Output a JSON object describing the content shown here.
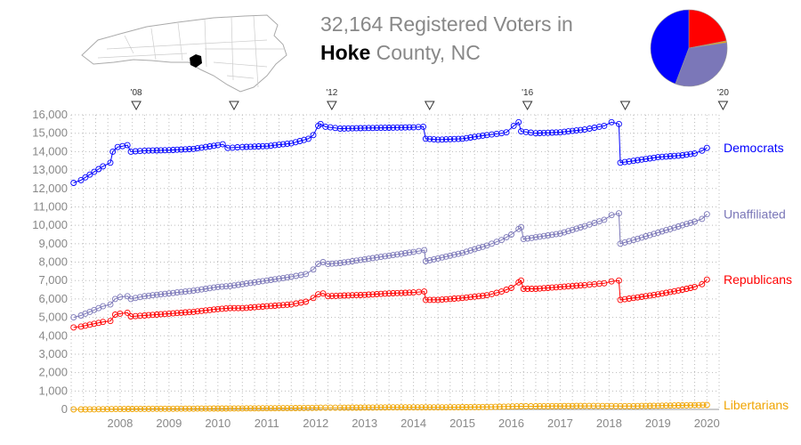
{
  "header": {
    "title_line1": "32,164 Registered Voters in",
    "county": "Hoke",
    "title_suffix": " County, NC"
  },
  "map": {
    "state": "NC",
    "highlight": "Hoke"
  },
  "pie": {
    "colors": {
      "democrats": "#0000ff",
      "unaffiliated": "#7b77b8",
      "republicans": "#ff0000",
      "libertarians": "#f0a400"
    }
  },
  "chart_data": {
    "type": "line",
    "title": "32,164 Registered Voters in Hoke County, NC",
    "xlabel": "",
    "ylabel": "",
    "ylim": [
      0,
      16000
    ],
    "xlim": [
      2007.5,
      2020.75
    ],
    "y_ticks": [
      "0",
      "1,000",
      "2,000",
      "3,000",
      "4,000",
      "5,000",
      "6,000",
      "7,000",
      "8,000",
      "9,000",
      "10,000",
      "11,000",
      "12,000",
      "13,000",
      "14,000",
      "15,000",
      "16,000"
    ],
    "x_ticks": [
      "2008",
      "2009",
      "2010",
      "2011",
      "2012",
      "2013",
      "2014",
      "2015",
      "2016",
      "2017",
      "2018",
      "2019",
      "2020"
    ],
    "election_markers": [
      {
        "x": 2008.83,
        "label": "'08"
      },
      {
        "x": 2010.83,
        "label": ""
      },
      {
        "x": 2012.83,
        "label": "'12"
      },
      {
        "x": 2014.83,
        "label": ""
      },
      {
        "x": 2016.83,
        "label": "'16"
      },
      {
        "x": 2018.83,
        "label": ""
      },
      {
        "x": 2020.83,
        "label": "'20"
      }
    ],
    "grid": true,
    "legend": "right-of-lines",
    "series": [
      {
        "name": "Democrats",
        "color": "#0000ff",
        "points": [
          [
            2007.55,
            12300
          ],
          [
            2007.7,
            12450
          ],
          [
            2008.15,
            13200
          ],
          [
            2008.3,
            13400
          ],
          [
            2008.35,
            14000
          ],
          [
            2008.45,
            14250
          ],
          [
            2008.55,
            14300
          ],
          [
            2008.65,
            14350
          ],
          [
            2008.72,
            14000
          ],
          [
            2009.0,
            14050
          ],
          [
            2009.5,
            14080
          ],
          [
            2010.0,
            14150
          ],
          [
            2010.5,
            14350
          ],
          [
            2010.6,
            14400
          ],
          [
            2010.7,
            14200
          ],
          [
            2011.0,
            14250
          ],
          [
            2011.5,
            14300
          ],
          [
            2012.0,
            14450
          ],
          [
            2012.35,
            14700
          ],
          [
            2012.45,
            14900
          ],
          [
            2012.55,
            15400
          ],
          [
            2012.6,
            15500
          ],
          [
            2012.7,
            15350
          ],
          [
            2013.0,
            15250
          ],
          [
            2013.5,
            15280
          ],
          [
            2014.0,
            15300
          ],
          [
            2014.5,
            15320
          ],
          [
            2014.7,
            15350
          ],
          [
            2014.75,
            14700
          ],
          [
            2015.0,
            14650
          ],
          [
            2015.5,
            14700
          ],
          [
            2016.0,
            14900
          ],
          [
            2016.3,
            15000
          ],
          [
            2016.4,
            15050
          ],
          [
            2016.55,
            15400
          ],
          [
            2016.65,
            15600
          ],
          [
            2016.7,
            15100
          ],
          [
            2017.0,
            15000
          ],
          [
            2017.5,
            15050
          ],
          [
            2018.0,
            15200
          ],
          [
            2018.4,
            15400
          ],
          [
            2018.55,
            15600
          ],
          [
            2018.7,
            15500
          ],
          [
            2018.73,
            13400
          ],
          [
            2019.0,
            13500
          ],
          [
            2019.5,
            13700
          ],
          [
            2020.0,
            13800
          ],
          [
            2020.25,
            13900
          ],
          [
            2020.4,
            14050
          ],
          [
            2020.5,
            14200
          ]
        ]
      },
      {
        "name": "Unaffiliated",
        "color": "#7b77b8",
        "points": [
          [
            2007.55,
            5000
          ],
          [
            2007.7,
            5100
          ],
          [
            2008.15,
            5600
          ],
          [
            2008.3,
            5700
          ],
          [
            2008.4,
            6000
          ],
          [
            2008.5,
            6100
          ],
          [
            2008.65,
            6150
          ],
          [
            2008.72,
            6000
          ],
          [
            2009.0,
            6150
          ],
          [
            2009.5,
            6300
          ],
          [
            2010.0,
            6450
          ],
          [
            2010.5,
            6650
          ],
          [
            2010.75,
            6700
          ],
          [
            2011.0,
            6800
          ],
          [
            2011.5,
            7000
          ],
          [
            2012.0,
            7200
          ],
          [
            2012.3,
            7350
          ],
          [
            2012.45,
            7600
          ],
          [
            2012.55,
            7900
          ],
          [
            2012.65,
            8000
          ],
          [
            2012.75,
            7900
          ],
          [
            2013.0,
            7950
          ],
          [
            2013.5,
            8150
          ],
          [
            2014.0,
            8350
          ],
          [
            2014.5,
            8550
          ],
          [
            2014.72,
            8650
          ],
          [
            2014.75,
            8050
          ],
          [
            2015.0,
            8200
          ],
          [
            2015.5,
            8500
          ],
          [
            2016.0,
            8900
          ],
          [
            2016.3,
            9200
          ],
          [
            2016.5,
            9500
          ],
          [
            2016.65,
            9800
          ],
          [
            2016.7,
            9900
          ],
          [
            2016.75,
            9250
          ],
          [
            2017.0,
            9350
          ],
          [
            2017.5,
            9550
          ],
          [
            2018.0,
            9950
          ],
          [
            2018.4,
            10300
          ],
          [
            2018.55,
            10550
          ],
          [
            2018.7,
            10650
          ],
          [
            2018.73,
            9000
          ],
          [
            2019.0,
            9200
          ],
          [
            2019.5,
            9600
          ],
          [
            2020.0,
            10000
          ],
          [
            2020.25,
            10200
          ],
          [
            2020.4,
            10350
          ],
          [
            2020.5,
            10600
          ]
        ]
      },
      {
        "name": "Republicans",
        "color": "#ff0000",
        "points": [
          [
            2007.55,
            4450
          ],
          [
            2007.7,
            4500
          ],
          [
            2008.15,
            4750
          ],
          [
            2008.3,
            4800
          ],
          [
            2008.4,
            5150
          ],
          [
            2008.5,
            5200
          ],
          [
            2008.65,
            5250
          ],
          [
            2008.72,
            5050
          ],
          [
            2009.0,
            5100
          ],
          [
            2009.5,
            5200
          ],
          [
            2010.0,
            5300
          ],
          [
            2010.5,
            5450
          ],
          [
            2010.75,
            5500
          ],
          [
            2011.0,
            5500
          ],
          [
            2011.5,
            5600
          ],
          [
            2012.0,
            5700
          ],
          [
            2012.3,
            5850
          ],
          [
            2012.45,
            6050
          ],
          [
            2012.55,
            6250
          ],
          [
            2012.65,
            6300
          ],
          [
            2012.75,
            6150
          ],
          [
            2013.0,
            6180
          ],
          [
            2013.5,
            6220
          ],
          [
            2014.0,
            6300
          ],
          [
            2014.5,
            6350
          ],
          [
            2014.72,
            6400
          ],
          [
            2014.75,
            5950
          ],
          [
            2015.0,
            5950
          ],
          [
            2015.5,
            6050
          ],
          [
            2016.0,
            6200
          ],
          [
            2016.3,
            6400
          ],
          [
            2016.5,
            6600
          ],
          [
            2016.65,
            6900
          ],
          [
            2016.7,
            7000
          ],
          [
            2016.75,
            6550
          ],
          [
            2017.0,
            6550
          ],
          [
            2017.5,
            6650
          ],
          [
            2018.0,
            6750
          ],
          [
            2018.4,
            6850
          ],
          [
            2018.55,
            6950
          ],
          [
            2018.7,
            7000
          ],
          [
            2018.73,
            5950
          ],
          [
            2019.0,
            6050
          ],
          [
            2019.5,
            6250
          ],
          [
            2020.0,
            6500
          ],
          [
            2020.25,
            6650
          ],
          [
            2020.4,
            6800
          ],
          [
            2020.5,
            7050
          ]
        ]
      },
      {
        "name": "Libertarians",
        "color": "#f0a400",
        "points": [
          [
            2007.55,
            0
          ],
          [
            2007.7,
            0
          ],
          [
            2008.15,
            10
          ],
          [
            2008.5,
            20
          ],
          [
            2009.0,
            30
          ],
          [
            2010.0,
            40
          ],
          [
            2011.0,
            55
          ],
          [
            2012.0,
            70
          ],
          [
            2012.6,
            90
          ],
          [
            2013.0,
            90
          ],
          [
            2014.0,
            110
          ],
          [
            2014.75,
            110
          ],
          [
            2015.0,
            110
          ],
          [
            2016.0,
            130
          ],
          [
            2016.7,
            170
          ],
          [
            2017.0,
            170
          ],
          [
            2018.0,
            190
          ],
          [
            2018.73,
            180
          ],
          [
            2019.0,
            180
          ],
          [
            2020.0,
            220
          ],
          [
            2020.5,
            240
          ]
        ]
      }
    ],
    "end_labels": [
      {
        "text": "Democrats",
        "color": "#0000ff",
        "y": 14200
      },
      {
        "text": "Unaffiliated",
        "color": "#7b77b8",
        "y": 10600
      },
      {
        "text": "Republicans",
        "color": "#ff0000",
        "y": 7050
      },
      {
        "text": "Libertarians",
        "color": "#f0a400",
        "y": 240
      }
    ],
    "pie_slices": [
      {
        "name": "Democrats",
        "value": 14200,
        "color": "#0000ff"
      },
      {
        "name": "Unaffiliated",
        "value": 10600,
        "color": "#7b77b8"
      },
      {
        "name": "Republicans",
        "value": 7050,
        "color": "#ff0000"
      },
      {
        "name": "Libertarians",
        "value": 240,
        "color": "#f0a400"
      }
    ]
  }
}
